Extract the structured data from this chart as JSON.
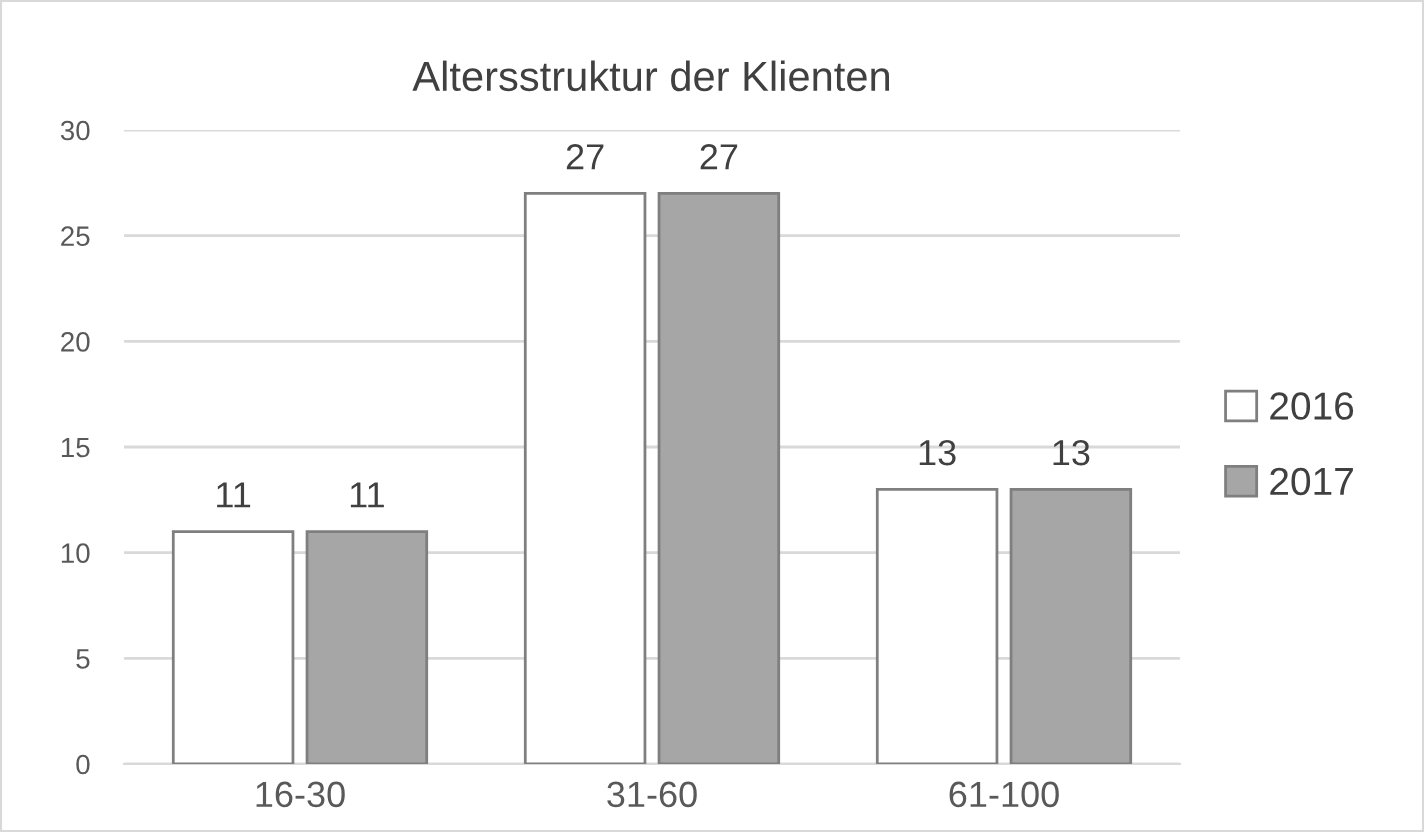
{
  "chart_data": {
    "type": "bar",
    "title": "Altersstruktur der Klienten",
    "categories": [
      "16-30",
      "31-60",
      "61-100"
    ],
    "series": [
      {
        "name": "2016",
        "color": "#ffffff",
        "values": [
          11,
          27,
          13
        ]
      },
      {
        "name": "2017",
        "color": "#a6a6a6",
        "values": [
          11,
          27,
          13
        ]
      }
    ],
    "ylim": [
      0,
      30
    ],
    "yticks": [
      0,
      5,
      10,
      15,
      20,
      25,
      30
    ],
    "grid": "y",
    "legend": "right",
    "data_labels": true
  }
}
